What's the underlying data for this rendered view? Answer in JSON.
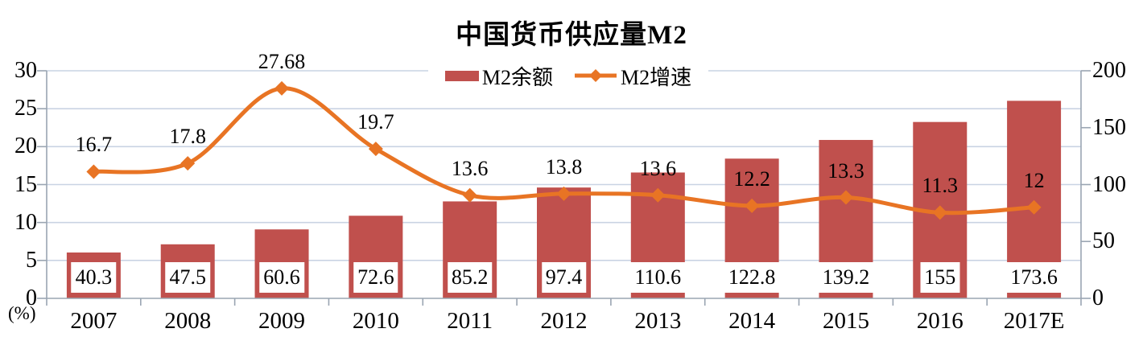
{
  "title": "中国货币供应量M2",
  "legend": {
    "bar_label": "M2余额",
    "line_label": "M2增速"
  },
  "axis_unit_label": "(%)",
  "colors": {
    "bar": "#C0504D",
    "line": "#E87424",
    "gridline": "#C9D3E3",
    "axis": "#9AA5B2",
    "text": "#000000",
    "label_box_bg": "#FFFFFF"
  },
  "chart_data": {
    "type": "bar+line",
    "title": "中国货币供应量M2",
    "categories": [
      "2007",
      "2008",
      "2009",
      "2010",
      "2011",
      "2012",
      "2013",
      "2014",
      "2015",
      "2016",
      "2017E"
    ],
    "series": [
      {
        "name": "M2余额",
        "type": "bar",
        "axis": "right",
        "values": [
          40.3,
          47.5,
          60.6,
          72.6,
          85.2,
          97.4,
          110.6,
          122.8,
          139.2,
          155,
          173.6
        ]
      },
      {
        "name": "M2增速",
        "type": "line",
        "axis": "left",
        "values": [
          16.7,
          17.8,
          27.68,
          19.7,
          13.6,
          13.8,
          13.6,
          12.2,
          13.3,
          11.3,
          12
        ]
      }
    ],
    "left_axis": {
      "label": "(%)",
      "range": [
        0,
        30
      ],
      "ticks": [
        0,
        5,
        10,
        15,
        20,
        25,
        30
      ]
    },
    "right_axis": {
      "range": [
        0,
        200
      ],
      "ticks": [
        0,
        50,
        100,
        150,
        200
      ]
    },
    "grid": true,
    "legend_position": "top-center",
    "data_labels": "shown for both series"
  }
}
